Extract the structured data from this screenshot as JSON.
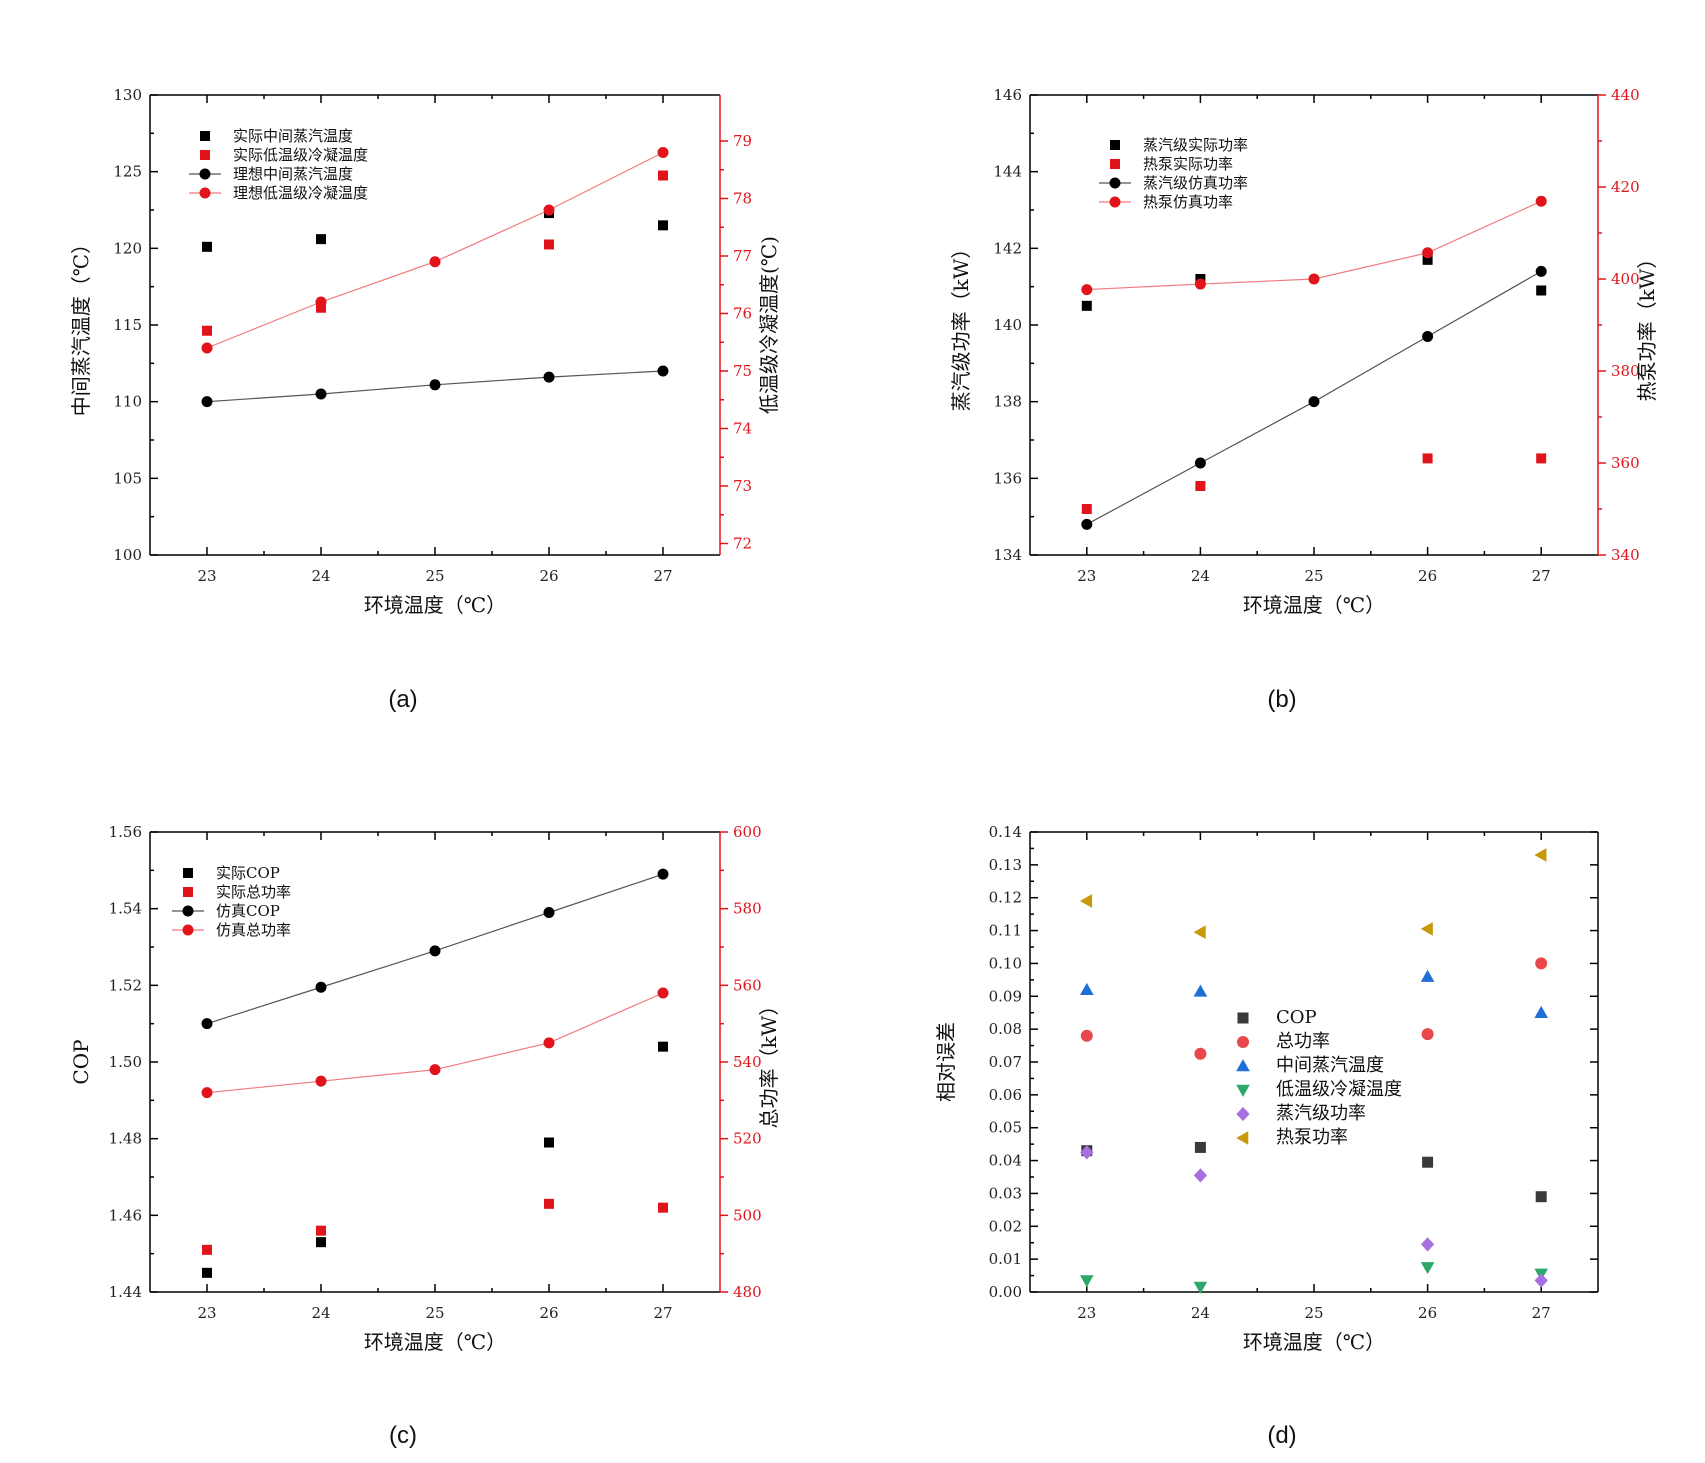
{
  "chart_data": [
    {
      "panel": "(a)",
      "type": "scatter",
      "xlabel": "环境温度（℃）",
      "x": [
        23,
        24,
        25,
        26,
        27
      ],
      "xlim": [
        22.5,
        27.5
      ],
      "ylabel_left": "中间蒸汽温度（℃）",
      "ylim_left": [
        100,
        130
      ],
      "yticks_left": [
        100,
        105,
        110,
        115,
        120,
        125,
        130
      ],
      "ylabel_right": "低温级冷凝温度(℃)",
      "ylim_right": [
        71.8,
        79.8
      ],
      "yticks_right": [
        72,
        73,
        74,
        75,
        76,
        77,
        78,
        79
      ],
      "legend_position": "top-left",
      "series": [
        {
          "name": "实际中间蒸汽温度",
          "axis": "left",
          "color": "#000000",
          "marker": "square",
          "line": false,
          "x": [
            23,
            24,
            26,
            27
          ],
          "values": [
            120.1,
            120.6,
            122.3,
            121.5
          ]
        },
        {
          "name": "实际低温级冷凝温度",
          "axis": "right",
          "color": "#e1141b",
          "marker": "square",
          "line": false,
          "x": [
            23,
            24,
            26,
            27
          ],
          "values": [
            75.7,
            76.1,
            77.2,
            78.4
          ]
        },
        {
          "name": "理想中间蒸汽温度",
          "axis": "left",
          "color": "#000000",
          "marker": "circle",
          "line": true,
          "x": [
            23,
            24,
            25,
            26,
            27
          ],
          "values": [
            110.0,
            110.5,
            111.1,
            111.6,
            112.0
          ]
        },
        {
          "name": "理想低温级冷凝温度",
          "axis": "right",
          "color": "#e1141b",
          "marker": "circle",
          "line": true,
          "x": [
            23,
            24,
            25,
            26,
            27
          ],
          "values": [
            75.4,
            76.2,
            76.9,
            77.8,
            78.8
          ]
        }
      ]
    },
    {
      "panel": "(b)",
      "type": "scatter",
      "xlabel": "环境温度（℃）",
      "x": [
        23,
        24,
        25,
        26,
        27
      ],
      "xlim": [
        22.5,
        27.5
      ],
      "ylabel_left": "蒸汽级功率（kW）",
      "ylim_left": [
        134,
        146
      ],
      "yticks_left": [
        134,
        136,
        138,
        140,
        142,
        144,
        146
      ],
      "ylabel_right": "热泵功率（kW）",
      "ylim_right": [
        340,
        440
      ],
      "yticks_right": [
        340,
        360,
        380,
        400,
        420,
        440
      ],
      "legend_position": "top-left",
      "series": [
        {
          "name": "蒸汽级实际功率",
          "axis": "left",
          "color": "#000000",
          "marker": "square",
          "line": false,
          "x": [
            23,
            24,
            26,
            27
          ],
          "values": [
            140.5,
            141.2,
            141.7,
            140.9
          ]
        },
        {
          "name": "热泵实际功率",
          "axis": "right",
          "color": "#e1141b",
          "marker": "square",
          "line": false,
          "x": [
            23,
            24,
            26,
            27
          ],
          "values": [
            350,
            355,
            361,
            361
          ]
        },
        {
          "name": "蒸汽级仿真功率",
          "axis": "left",
          "color": "#000000",
          "marker": "circle",
          "line": true,
          "x": [
            23,
            24,
            25,
            26,
            27
          ],
          "values": [
            134.8,
            136.4,
            138.0,
            139.7,
            141.4
          ]
        },
        {
          "name": "热泵仿真功率",
          "axis": "right",
          "color": "#e1141b",
          "marker": "circle",
          "line": true,
          "x": [
            23,
            24,
            25,
            26,
            27
          ],
          "values": [
            397.7,
            398.9,
            400.0,
            405.7,
            416.9
          ]
        }
      ]
    },
    {
      "panel": "(c)",
      "type": "scatter",
      "xlabel": "环境温度（℃）",
      "x": [
        23,
        24,
        25,
        26,
        27
      ],
      "xlim": [
        22.5,
        27.5
      ],
      "ylabel_left": "COP",
      "ylim_left": [
        1.44,
        1.56
      ],
      "yticks_left": [
        "1.44",
        "1.46",
        "1.48",
        "1.50",
        "1.52",
        "1.54",
        "1.56"
      ],
      "ylabel_right": "总功率（kW）",
      "ylim_right": [
        480,
        600
      ],
      "yticks_right": [
        480,
        500,
        520,
        540,
        560,
        580,
        600
      ],
      "legend_position": "top-left",
      "series": [
        {
          "name": "实际COP",
          "axis": "left",
          "color": "#000000",
          "marker": "square",
          "line": false,
          "x": [
            23,
            24,
            26,
            27
          ],
          "values": [
            1.445,
            1.453,
            1.479,
            1.504
          ]
        },
        {
          "name": "实际总功率",
          "axis": "right",
          "color": "#e1141b",
          "marker": "square",
          "line": false,
          "x": [
            23,
            24,
            26,
            27
          ],
          "values": [
            491,
            496,
            503,
            502
          ]
        },
        {
          "name": "仿真COP",
          "axis": "left",
          "color": "#000000",
          "marker": "circle",
          "line": true,
          "x": [
            23,
            24,
            25,
            26,
            27
          ],
          "values": [
            1.51,
            1.5195,
            1.529,
            1.539,
            1.549
          ]
        },
        {
          "name": "仿真总功率",
          "axis": "right",
          "color": "#e1141b",
          "marker": "circle",
          "line": true,
          "x": [
            23,
            24,
            25,
            26,
            27
          ],
          "values": [
            532,
            535,
            538,
            545,
            558
          ]
        }
      ]
    },
    {
      "panel": "(d)",
      "type": "scatter",
      "xlabel": "环境温度（℃）",
      "x": [
        23,
        24,
        25,
        26,
        27
      ],
      "xlim": [
        22.5,
        27.5
      ],
      "ylabel_left": "相对误差",
      "ylim_left": [
        0,
        0.14
      ],
      "yticks_left": [
        "0.00",
        "0.01",
        "0.02",
        "0.03",
        "0.04",
        "0.05",
        "0.06",
        "0.07",
        "0.08",
        "0.09",
        "0.10",
        "0.11",
        "0.12",
        "0.13",
        "0.14"
      ],
      "legend_position": "center",
      "series": [
        {
          "name": "COP",
          "color": "#3a3a3a",
          "marker": "square",
          "x": [
            23,
            24,
            26,
            27
          ],
          "values": [
            0.043,
            0.044,
            0.0395,
            0.029
          ]
        },
        {
          "name": "总功率",
          "color": "#e8474c",
          "marker": "circle",
          "x": [
            23,
            24,
            26,
            27
          ],
          "values": [
            0.078,
            0.0725,
            0.0785,
            0.1
          ]
        },
        {
          "name": "中间蒸汽温度",
          "color": "#1f6fd6",
          "marker": "triangle-up",
          "x": [
            23,
            24,
            26,
            27
          ],
          "values": [
            0.092,
            0.0915,
            0.096,
            0.085
          ]
        },
        {
          "name": "低温级冷凝温度",
          "color": "#2ea868",
          "marker": "triangle-down",
          "x": [
            23,
            24,
            26,
            27
          ],
          "values": [
            0.0035,
            0.0015,
            0.0075,
            0.0055
          ]
        },
        {
          "name": "蒸汽级功率",
          "color": "#a86fe0",
          "marker": "diamond",
          "x": [
            23,
            24,
            26,
            27
          ],
          "values": [
            0.0425,
            0.0355,
            0.0145,
            0.0035
          ]
        },
        {
          "name": "热泵功率",
          "color": "#c79a0a",
          "marker": "triangle-left",
          "x": [
            23,
            24,
            26,
            27
          ],
          "values": [
            0.119,
            0.1095,
            0.1105,
            0.133
          ]
        }
      ]
    }
  ]
}
